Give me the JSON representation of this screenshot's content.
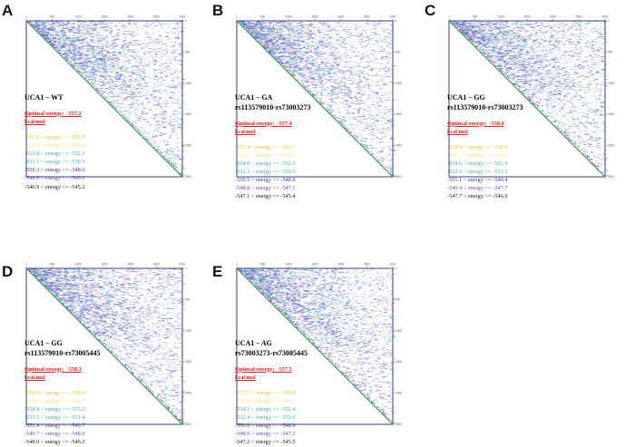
{
  "axis_ticks": {
    "top": [
      "1",
      "500",
      "1000",
      "1500",
      "2000",
      "2500",
      "2001"
    ],
    "right": [
      "1",
      "500",
      "1000",
      "1500",
      "2000",
      "2001"
    ]
  },
  "colors": {
    "level_colors": [
      "#f2c21a",
      "#f2e27a",
      "#3ab08a",
      "#35b0c8",
      "#2e3a8c",
      "#7a40b0",
      "#111111"
    ],
    "optimal": "#e02020",
    "diagonal": "#2f8a4a",
    "frame": "#3a3f7a"
  },
  "panels": [
    {
      "letter": "A",
      "title_lines": [
        "UCA1 – WT"
      ],
      "optimal_label": "Optimal energy:",
      "optimal_value": "-557.2",
      "unit": "kcal/mol",
      "legend": [
        "-557.2 < energy <= -555.5",
        "-555.5 < energy <= -553.8",
        "-553.8 < energy <= -552.1",
        "-552.1 < energy <= -550.3",
        "-550.3 < energy <= -548.6",
        "-548.6 < energy <= -546.9",
        "-546.9 < energy <= -545.2"
      ]
    },
    {
      "letter": "B",
      "title_lines": [
        "UCA1 – GA",
        "rs113579010-rs73003273"
      ],
      "optimal_label": "Optimal energy:",
      "optimal_value": "-557.4",
      "unit": "kcal/mol",
      "legend": [
        "-557.4 < energy <= -555.7",
        "-555.7 < energy <= -554.0",
        "-554.0 < energy <= -552.3",
        "-552.3 < energy <= -550.5",
        "-550.5 < energy <= -548.8",
        "-548.8 < energy <= -547.1",
        "-547.1 < energy <= -545.4"
      ]
    },
    {
      "letter": "C",
      "title_lines": [
        "UCA1 – GG",
        "rs113579010-rs73003273"
      ],
      "optimal_label": "Optimal energy:",
      "optimal_value": "-558.0",
      "unit": "kcal/mol",
      "legend": [
        "-558.0 < energy <= -556.3",
        "-556.3 < energy <= -554.6",
        "-554.6 < energy <= -552.9",
        "-552.9 < energy <= -551.1",
        "-551.1 < energy <= -549.4",
        "-549.4 < energy <= -547.7",
        "-547.7 < energy <= -546.0"
      ]
    },
    {
      "letter": "D",
      "title_lines": [
        "UCA1 – GG",
        "rs113579010-rs73005445"
      ],
      "optimal_label": "Optimal energy:",
      "optimal_value": "-558.3",
      "unit": "kcal/mol",
      "legend": [
        "-558.3 < energy <= -556.6",
        "-556.6 < energy <= -554.9",
        "-554.9 < energy <= -553.2",
        "-553.2 < energy <= -551.4",
        "-551.4 < energy <= -549.7",
        "-549.7 < energy <= -548.0",
        "-548.0 < energy <= -546.3"
      ]
    },
    {
      "letter": "E",
      "title_lines": [
        "UCA1 – AG",
        "rs73003273-rs73005445"
      ],
      "optimal_label": "Optimal energy:",
      "optimal_value": "-557.5",
      "unit": "kcal/mol",
      "legend": [
        "-557.5 < energy <= -555.8",
        "-555.8 < energy <= -554.1",
        "-554.1 < energy <= -552.4",
        "-552.4 < energy <= -550.6",
        "-550.6 < energy <= -548.9",
        "-548.9 < energy <= -547.2",
        "-547.2 < energy <= -545.5"
      ]
    }
  ]
}
